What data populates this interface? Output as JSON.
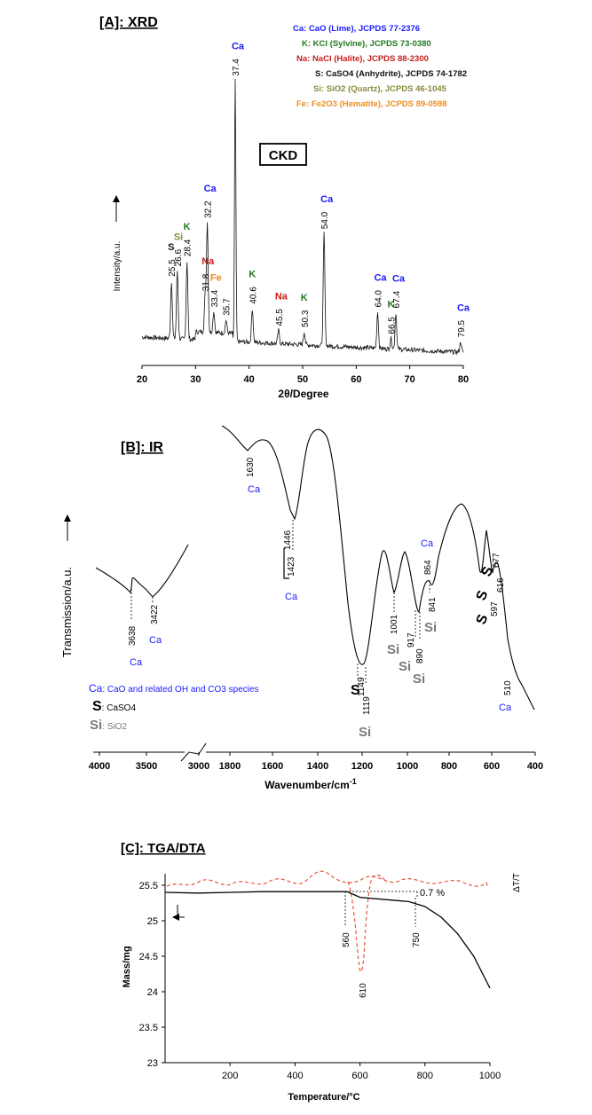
{
  "colors": {
    "Ca": "#1a1aff",
    "K": "#1f7a1f",
    "Na": "#c81e1e",
    "S": "#111111",
    "Si": "#8a8a3c",
    "Fe": "#f08c1e",
    "Si_ir": "#7a7a7a",
    "dta": "#e8553c",
    "axis": "#000000"
  },
  "panels": [
    {
      "id": "xrd",
      "title": "[A]: XRD",
      "sample": "CKD",
      "xlabel": "2θ/Degree",
      "ylabel": "Intensity/a.u.",
      "xlim": [
        20,
        80
      ],
      "xticks": [
        "20",
        "30",
        "40",
        "50",
        "60",
        "70",
        "80"
      ],
      "legend": [
        {
          "code": "Ca",
          "text": "Ca: CaO (Lime), JCPDS 77-2376"
        },
        {
          "code": "K",
          "text": "K: KCl (Sylvine), JCPDS 73-0380"
        },
        {
          "code": "Na",
          "text": "Na: NaCl (Halite), JCPDS 88-2300"
        },
        {
          "code": "S",
          "text": "S: CaSO4 (Anhydrite), JCPDS 74-1782"
        },
        {
          "code": "Si",
          "text": "Si: SiO2 (Quartz), JCPDS 46-1045"
        },
        {
          "code": "Fe",
          "text": "Fe: Fe2O3 (Hematite), JCPDS 89-0598"
        }
      ],
      "peaks": [
        {
          "x": 25.5,
          "label": "25.5",
          "phase": "S",
          "rel": 0.22
        },
        {
          "x": 26.6,
          "label": "26.6",
          "phase": "Si",
          "rel": 0.26
        },
        {
          "x": 28.4,
          "label": "28.4",
          "phase": "K",
          "rel": 0.3
        },
        {
          "x": 31.8,
          "label": "31.8",
          "phase": "Na",
          "rel": 0.14
        },
        {
          "x": 32.2,
          "label": "32.2",
          "phase": "Ca",
          "rel": 0.42
        },
        {
          "x": 33.4,
          "label": "33.4",
          "phase": "Fe",
          "rel": 0.08
        },
        {
          "x": 35.7,
          "label": "35.7",
          "phase": "",
          "rel": 0.05
        },
        {
          "x": 37.4,
          "label": "37.4",
          "phase": "Ca",
          "rel": 1.0
        },
        {
          "x": 40.6,
          "label": "40.6",
          "phase": "K",
          "rel": 0.13
        },
        {
          "x": 45.5,
          "label": "45.5",
          "phase": "Na",
          "rel": 0.05
        },
        {
          "x": 50.3,
          "label": "50.3",
          "phase": "K",
          "rel": 0.05
        },
        {
          "x": 54.0,
          "label": "54.0",
          "phase": "Ca",
          "rel": 0.43
        },
        {
          "x": 64.0,
          "label": "64.0",
          "phase": "Ca",
          "rel": 0.14
        },
        {
          "x": 66.5,
          "label": "66.5",
          "phase": "K",
          "rel": 0.04
        },
        {
          "x": 67.4,
          "label": "67.4",
          "phase": "Ca",
          "rel": 0.14
        },
        {
          "x": 79.5,
          "label": "79.5",
          "phase": "Ca",
          "rel": 0.04
        }
      ]
    },
    {
      "id": "ir",
      "title": "[B]: IR",
      "xlabel": "Wavenumber/cm",
      "xlabel_sup": "-1",
      "ylabel": "Transmission/a.u.",
      "xticks": [
        "4000",
        "3500",
        "3000",
        "1800",
        "1600",
        "1400",
        "1200",
        "1000",
        "800",
        "600",
        "400"
      ],
      "legend": [
        {
          "code": "Ca",
          "text": "Ca: CaO and related OH and CO3 species"
        },
        {
          "code": "S",
          "text": "S: CaSO4"
        },
        {
          "code": "Si",
          "text": "Si: SiO2"
        }
      ],
      "bands": [
        {
          "x": 3638,
          "label": "3638",
          "phase": "Ca"
        },
        {
          "x": 3422,
          "label": "3422",
          "phase": "Ca"
        },
        {
          "x": 1630,
          "label": "1630",
          "phase": "Ca"
        },
        {
          "x": 1446,
          "label": "1446",
          "phase": ""
        },
        {
          "x": 1423,
          "label": "1423",
          "phase": "Ca"
        },
        {
          "x": 1149,
          "label": "1149",
          "phase": "S"
        },
        {
          "x": 1119,
          "label": "1119",
          "phase": "Si"
        },
        {
          "x": 1001,
          "label": "1001",
          "phase": "Si"
        },
        {
          "x": 917,
          "label": "917",
          "phase": "Si"
        },
        {
          "x": 890,
          "label": "890",
          "phase": "Si"
        },
        {
          "x": 864,
          "label": "864",
          "phase": "Ca"
        },
        {
          "x": 841,
          "label": "841",
          "phase": "Si"
        },
        {
          "x": 677,
          "label": "677",
          "phase": "S"
        },
        {
          "x": 616,
          "label": "616",
          "phase": "S"
        },
        {
          "x": 597,
          "label": "597",
          "phase": "S"
        },
        {
          "x": 510,
          "label": "510",
          "phase": "Ca"
        }
      ]
    },
    {
      "id": "tga",
      "title": "[C]: TGA/DTA",
      "xlabel": "Temperature/°C",
      "ylabel": "Mass/mg",
      "y2label": "ΔT/T",
      "xlim": [
        0,
        1000
      ],
      "ylim": [
        23,
        25.5
      ],
      "xticks": [
        "200",
        "400",
        "600",
        "800",
        "1000"
      ],
      "yticks": [
        "25.5",
        "25",
        "24.5",
        "24",
        "23.5",
        "23"
      ],
      "annotations": [
        "560",
        "610",
        "750",
        "0.7 %"
      ],
      "tga": [
        [
          0,
          25.4
        ],
        [
          100,
          25.39
        ],
        [
          200,
          25.4
        ],
        [
          300,
          25.41
        ],
        [
          400,
          25.41
        ],
        [
          500,
          25.41
        ],
        [
          560,
          25.41
        ],
        [
          600,
          25.33
        ],
        [
          700,
          25.29
        ],
        [
          750,
          25.27
        ],
        [
          800,
          25.2
        ],
        [
          850,
          25.05
        ],
        [
          900,
          24.82
        ],
        [
          950,
          24.5
        ],
        [
          1000,
          24.05
        ]
      ]
    }
  ]
}
